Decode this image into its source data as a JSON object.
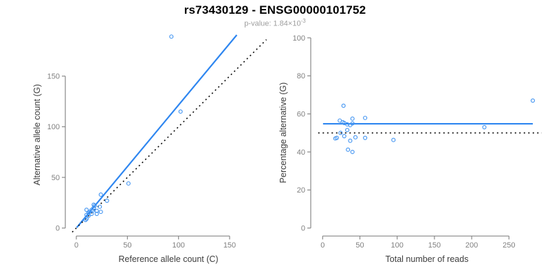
{
  "header": {
    "title": "rs73430129 - ENSG00000101752",
    "p_value_text": "p-value: 1.84×10",
    "p_value_exponent": "-3"
  },
  "colors": {
    "line_blue": "#2E86F0",
    "point_blue": "#3E92F1",
    "dotted_black": "#111111",
    "axis_gray": "#888888",
    "tick_label_gray": "#7F7F7F",
    "axis_title_gray": "#3d3d3d",
    "subtitle_gray": "#9E9E9E"
  },
  "chart_data": [
    {
      "id": "allele-counts-scatter",
      "type": "scatter",
      "xlabel": "Reference allele count (C)",
      "ylabel": "Alternative allele count (G)",
      "xticks": [
        0,
        50,
        100,
        150
      ],
      "yticks": [
        0,
        50,
        100,
        150
      ],
      "xlim": [
        -5,
        190
      ],
      "ylim": [
        -6,
        196
      ],
      "grid": false,
      "legend": false,
      "points": [
        [
          10,
          18
        ],
        [
          10,
          13
        ],
        [
          12,
          15
        ],
        [
          17,
          23
        ],
        [
          24,
          33
        ],
        [
          13,
          16
        ],
        [
          15,
          18
        ],
        [
          17,
          20
        ],
        [
          18,
          22
        ],
        [
          12,
          12
        ],
        [
          16,
          17
        ],
        [
          10,
          9
        ],
        [
          9,
          8
        ],
        [
          15,
          14
        ],
        [
          23,
          21
        ],
        [
          30,
          27
        ],
        [
          20,
          17
        ],
        [
          20,
          14
        ],
        [
          24,
          16
        ],
        [
          51,
          44
        ],
        [
          102,
          115
        ],
        [
          93,
          189
        ]
      ],
      "lines": [
        {
          "name": "fit-line",
          "style": "solid",
          "slope": 1.214,
          "intercept": 0,
          "x_range": [
            0.4,
            157
          ]
        },
        {
          "name": "identity-line",
          "style": "dotted",
          "slope": 1,
          "intercept": 0,
          "x_range": [
            -4,
            186
          ]
        }
      ]
    },
    {
      "id": "percentage-scatter",
      "type": "scatter",
      "xlabel": "Total number of reads",
      "ylabel": "Percentage alternative (G)",
      "xticks": [
        0,
        50,
        100,
        150,
        200,
        250
      ],
      "yticks": [
        0,
        20,
        40,
        60,
        80,
        100
      ],
      "xlim": [
        -12,
        295
      ],
      "ylim": [
        0,
        100
      ],
      "grid": false,
      "legend": false,
      "points": [
        [
          28,
          64.3
        ],
        [
          23,
          56.5
        ],
        [
          27,
          55.6
        ],
        [
          40,
          57.5
        ],
        [
          57,
          57.9
        ],
        [
          29,
          55.2
        ],
        [
          33,
          54.5
        ],
        [
          37,
          54.1
        ],
        [
          40,
          55.0
        ],
        [
          24,
          50.0
        ],
        [
          33,
          51.5
        ],
        [
          19,
          47.4
        ],
        [
          17,
          47.1
        ],
        [
          29,
          48.3
        ],
        [
          44,
          47.7
        ],
        [
          57,
          47.4
        ],
        [
          37,
          45.9
        ],
        [
          34,
          41.2
        ],
        [
          40,
          40.0
        ],
        [
          95,
          46.3
        ],
        [
          217,
          53.0
        ],
        [
          282,
          67.0
        ]
      ],
      "lines": [
        {
          "name": "fit-line",
          "style": "solid",
          "slope": 0,
          "intercept": 54.8,
          "x_range": [
            0.5,
            282
          ]
        },
        {
          "name": "null-line",
          "style": "dotted",
          "slope": 0,
          "intercept": 50,
          "x_range": [
            -6,
            294
          ]
        }
      ]
    }
  ]
}
